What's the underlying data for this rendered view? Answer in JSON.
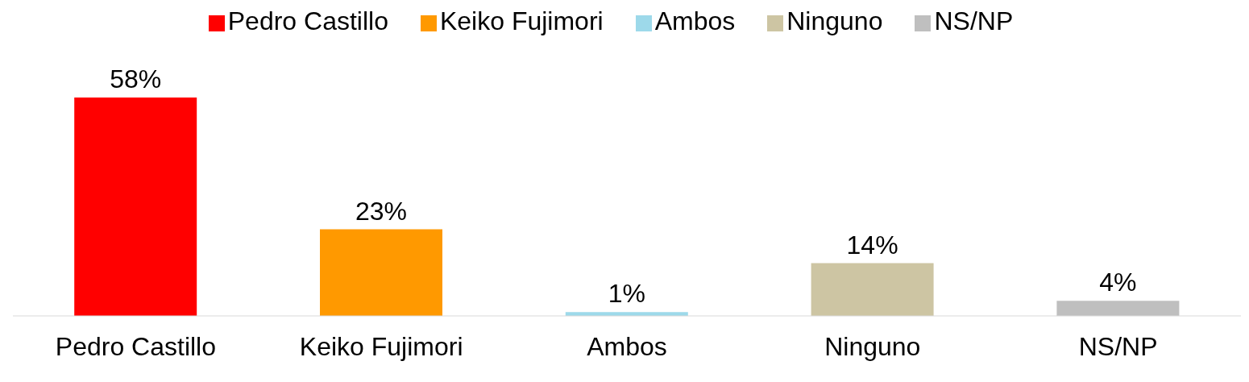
{
  "chart_data": {
    "type": "bar",
    "stacked": true,
    "categories": [
      "Pedro Castillo",
      "Keiko Fujimori",
      "Ambos",
      "Ninguno",
      "NS/NP"
    ],
    "series": [
      {
        "name": "Pedro Castillo",
        "color": "#ff0000",
        "values": [
          58,
          null,
          null,
          null,
          null
        ],
        "value_labels": [
          "58%",
          null,
          null,
          null,
          null
        ]
      },
      {
        "name": "Keiko Fujimori",
        "color": "#ff9900",
        "values": [
          null,
          23,
          null,
          null,
          null
        ],
        "value_labels": [
          null,
          "23%",
          null,
          null,
          null
        ]
      },
      {
        "name": "Ambos",
        "color": "#9dd9ea",
        "values": [
          null,
          null,
          1,
          null,
          null
        ],
        "value_labels": [
          null,
          null,
          "1%",
          null,
          null
        ]
      },
      {
        "name": "Ninguno",
        "color": "#cdc5a3",
        "values": [
          null,
          null,
          null,
          14,
          null
        ],
        "value_labels": [
          null,
          null,
          null,
          "14%",
          null
        ]
      },
      {
        "name": "NS/NP",
        "color": "#bfbfbf",
        "values": [
          null,
          null,
          null,
          null,
          4
        ],
        "value_labels": [
          null,
          null,
          null,
          null,
          "4%"
        ]
      }
    ],
    "legend": "top"
  }
}
